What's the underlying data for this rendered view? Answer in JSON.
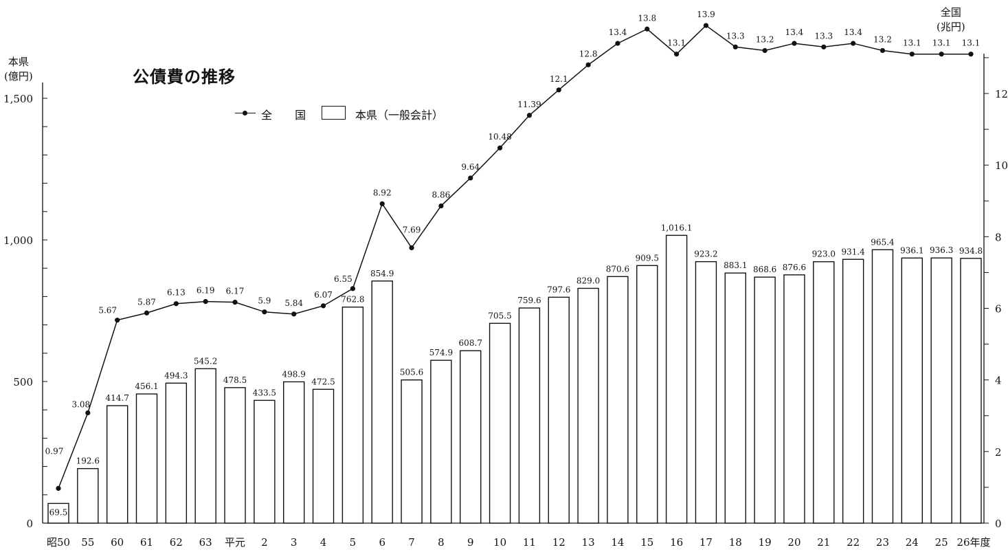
{
  "chart_data": {
    "type": "bar",
    "title": "公債費の推移",
    "categories": [
      "昭50",
      "55",
      "60",
      "61",
      "62",
      "63",
      "平元",
      "2",
      "3",
      "4",
      "5",
      "6",
      "7",
      "8",
      "9",
      "10",
      "11",
      "12",
      "13",
      "14",
      "15",
      "16",
      "17",
      "18",
      "19",
      "20",
      "21",
      "22",
      "23",
      "24",
      "25",
      "26年度"
    ],
    "left_axis": {
      "label_line1": "本県",
      "label_line2": "(億円)",
      "ylim": [
        0,
        1500
      ],
      "ticks": [
        "0",
        "500",
        "1,000",
        "1,500"
      ]
    },
    "right_axis": {
      "label_line1": "全国",
      "label_line2": "(兆円)",
      "ylim": [
        0,
        14
      ],
      "ticks": [
        "0",
        "2",
        "4",
        "6",
        "8",
        "10",
        "12"
      ]
    },
    "legend": {
      "line_label": "全 国",
      "bar_label": "本県（一般会計）"
    },
    "series": [
      {
        "name": "本県（一般会計）",
        "type": "bar",
        "axis": "left",
        "values": [
          69.5,
          192.6,
          414.7,
          456.1,
          494.3,
          545.2,
          478.5,
          433.5,
          498.9,
          472.5,
          762.8,
          854.9,
          505.6,
          574.9,
          608.7,
          705.5,
          759.6,
          797.6,
          829.0,
          870.6,
          909.5,
          1016.1,
          923.2,
          883.1,
          868.6,
          876.6,
          923.0,
          931.4,
          965.4,
          936.1,
          936.3,
          934.8
        ],
        "labels": [
          "69.5",
          "192.6",
          "414.7",
          "456.1",
          "494.3",
          "545.2",
          "478.5",
          "433.5",
          "498.9",
          "472.5",
          "762.8",
          "854.9",
          "505.6",
          "574.9",
          "608.7",
          "705.5",
          "759.6",
          "797.6",
          "829.0",
          "870.6",
          "909.5",
          "1,016.1",
          "923.2",
          "883.1",
          "868.6",
          "876.6",
          "923.0",
          "931.4",
          "965.4",
          "936.1",
          "936.3",
          "934.8"
        ]
      },
      {
        "name": "全 国",
        "type": "line",
        "axis": "right",
        "values": [
          0.97,
          3.08,
          5.67,
          5.87,
          6.13,
          6.19,
          6.17,
          5.9,
          5.84,
          6.07,
          6.55,
          8.92,
          7.69,
          8.86,
          9.64,
          10.48,
          11.39,
          12.1,
          12.8,
          13.4,
          13.8,
          13.1,
          13.9,
          13.3,
          13.2,
          13.4,
          13.3,
          13.4,
          13.2,
          13.1,
          13.1,
          13.1
        ],
        "labels": [
          "0.97",
          "3.08",
          "5.67",
          "5.87",
          "6.13",
          "6.19",
          "6.17",
          "5.9",
          "5.84",
          "6.07",
          "6.55",
          "8.92",
          "7.69",
          "8.86",
          "9.64",
          "10.48",
          "11.39",
          "12.1",
          "12.8",
          "13.4",
          "13.8",
          "13.1",
          "13.9",
          "13.3",
          "13.2",
          "13.4",
          "13.3",
          "13.4",
          "13.2",
          "13.1",
          "13.1",
          "13.1"
        ]
      }
    ],
    "grid": false,
    "legend_position": "top-left"
  }
}
